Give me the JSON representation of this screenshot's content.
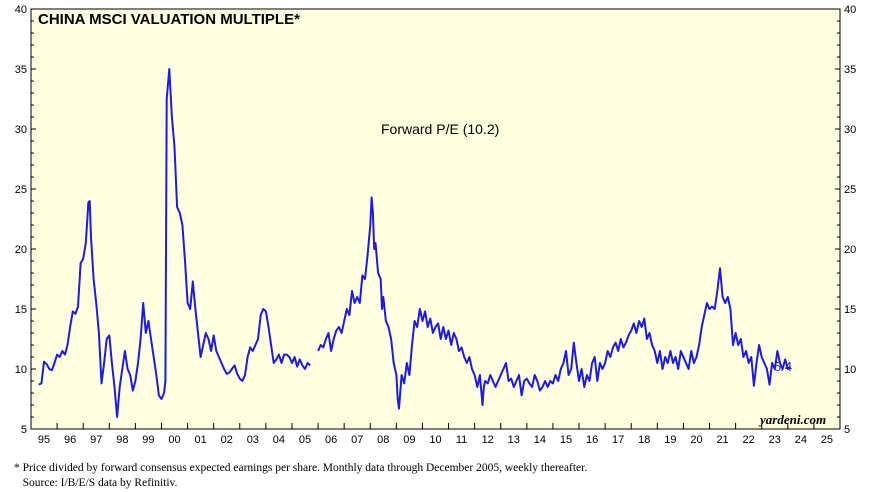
{
  "chart_data": {
    "type": "line",
    "title": "CHINA MSCI VALUATION MULTIPLE*",
    "series": [
      {
        "name": "Forward P/E (10.2)",
        "color": "#1a1aee",
        "points": [
          [
            1995.3,
            8.7
          ],
          [
            1995.4,
            8.8
          ],
          [
            1995.5,
            10.6
          ],
          [
            1995.6,
            10.4
          ],
          [
            1995.7,
            10.0
          ],
          [
            1995.8,
            9.9
          ],
          [
            1995.9,
            10.5
          ],
          [
            1996.0,
            11.2
          ],
          [
            1996.1,
            11.0
          ],
          [
            1996.2,
            11.5
          ],
          [
            1996.3,
            11.2
          ],
          [
            1996.4,
            12.0
          ],
          [
            1996.5,
            13.5
          ],
          [
            1996.6,
            14.8
          ],
          [
            1996.7,
            14.6
          ],
          [
            1996.8,
            15.2
          ],
          [
            1996.9,
            18.8
          ],
          [
            1997.0,
            19.2
          ],
          [
            1997.1,
            20.5
          ],
          [
            1997.2,
            23.9
          ],
          [
            1997.25,
            24.0
          ],
          [
            1997.3,
            21.0
          ],
          [
            1997.4,
            17.5
          ],
          [
            1997.5,
            15.5
          ],
          [
            1997.6,
            13.0
          ],
          [
            1997.7,
            8.8
          ],
          [
            1997.8,
            10.5
          ],
          [
            1997.9,
            12.5
          ],
          [
            1998.0,
            12.8
          ],
          [
            1998.1,
            10.5
          ],
          [
            1998.2,
            8.5
          ],
          [
            1998.3,
            6.0
          ],
          [
            1998.4,
            8.5
          ],
          [
            1998.5,
            10.0
          ],
          [
            1998.6,
            11.5
          ],
          [
            1998.7,
            10.0
          ],
          [
            1998.8,
            9.5
          ],
          [
            1998.9,
            8.2
          ],
          [
            1999.0,
            9.0
          ],
          [
            1999.1,
            10.5
          ],
          [
            1999.2,
            12.5
          ],
          [
            1999.3,
            15.5
          ],
          [
            1999.4,
            13.0
          ],
          [
            1999.5,
            14.0
          ],
          [
            1999.6,
            12.5
          ],
          [
            1999.7,
            11.0
          ],
          [
            1999.8,
            9.5
          ],
          [
            1999.9,
            7.8
          ],
          [
            2000.0,
            7.5
          ],
          [
            2000.1,
            8.0
          ],
          [
            2000.15,
            9.0
          ],
          [
            2000.2,
            32.5
          ],
          [
            2000.3,
            35.0
          ],
          [
            2000.4,
            31.0
          ],
          [
            2000.5,
            28.5
          ],
          [
            2000.6,
            23.5
          ],
          [
            2000.7,
            23.0
          ],
          [
            2000.8,
            22.0
          ],
          [
            2000.9,
            19.0
          ],
          [
            2001.0,
            15.5
          ],
          [
            2001.1,
            15.0
          ],
          [
            2001.2,
            17.3
          ],
          [
            2001.3,
            15.0
          ],
          [
            2001.4,
            13.0
          ],
          [
            2001.5,
            11.0
          ],
          [
            2001.6,
            12.0
          ],
          [
            2001.7,
            13.0
          ],
          [
            2001.8,
            12.5
          ],
          [
            2001.9,
            11.5
          ],
          [
            2002.0,
            12.8
          ],
          [
            2002.1,
            11.5
          ],
          [
            2002.2,
            11.0
          ],
          [
            2002.3,
            10.5
          ],
          [
            2002.4,
            10.0
          ],
          [
            2002.5,
            9.6
          ],
          [
            2002.6,
            9.7
          ],
          [
            2002.7,
            10.0
          ],
          [
            2002.8,
            10.3
          ],
          [
            2002.9,
            9.6
          ],
          [
            2003.0,
            9.2
          ],
          [
            2003.1,
            9.0
          ],
          [
            2003.2,
            9.5
          ],
          [
            2003.3,
            11.0
          ],
          [
            2003.4,
            11.8
          ],
          [
            2003.5,
            11.5
          ],
          [
            2003.6,
            12.0
          ],
          [
            2003.7,
            12.5
          ],
          [
            2003.8,
            14.5
          ],
          [
            2003.9,
            15.0
          ],
          [
            2004.0,
            14.8
          ],
          [
            2004.1,
            13.5
          ],
          [
            2004.2,
            12.0
          ],
          [
            2004.3,
            10.5
          ],
          [
            2004.4,
            10.8
          ],
          [
            2004.5,
            11.2
          ],
          [
            2004.6,
            10.5
          ],
          [
            2004.7,
            11.2
          ],
          [
            2004.8,
            11.2
          ],
          [
            2004.9,
            11.0
          ],
          [
            2005.0,
            10.5
          ],
          [
            2005.1,
            11.0
          ],
          [
            2005.2,
            10.2
          ],
          [
            2005.3,
            10.8
          ],
          [
            2005.4,
            10.3
          ],
          [
            2005.5,
            10.0
          ],
          [
            2005.6,
            10.5
          ],
          [
            2005.7,
            10.3
          ],
          [
            2006.0,
            11.5
          ],
          [
            2006.1,
            12.0
          ],
          [
            2006.2,
            11.8
          ],
          [
            2006.3,
            12.5
          ],
          [
            2006.4,
            13.0
          ],
          [
            2006.5,
            11.5
          ],
          [
            2006.6,
            12.5
          ],
          [
            2006.7,
            13.2
          ],
          [
            2006.8,
            13.5
          ],
          [
            2006.9,
            13.0
          ],
          [
            2007.0,
            14.0
          ],
          [
            2007.1,
            15.0
          ],
          [
            2007.2,
            14.5
          ],
          [
            2007.3,
            16.5
          ],
          [
            2007.4,
            15.5
          ],
          [
            2007.5,
            16.0
          ],
          [
            2007.6,
            15.5
          ],
          [
            2007.7,
            17.8
          ],
          [
            2007.8,
            17.5
          ],
          [
            2007.9,
            19.5
          ],
          [
            2008.0,
            22.0
          ],
          [
            2008.05,
            24.3
          ],
          [
            2008.1,
            23.0
          ],
          [
            2008.15,
            20.0
          ],
          [
            2008.2,
            20.5
          ],
          [
            2008.3,
            18.0
          ],
          [
            2008.4,
            17.5
          ],
          [
            2008.45,
            15.0
          ],
          [
            2008.5,
            16.0
          ],
          [
            2008.6,
            14.0
          ],
          [
            2008.7,
            13.5
          ],
          [
            2008.8,
            12.5
          ],
          [
            2008.9,
            10.5
          ],
          [
            2009.0,
            9.5
          ],
          [
            2009.05,
            7.5
          ],
          [
            2009.1,
            6.7
          ],
          [
            2009.2,
            9.5
          ],
          [
            2009.3,
            8.8
          ],
          [
            2009.4,
            10.5
          ],
          [
            2009.5,
            9.5
          ],
          [
            2009.6,
            12.0
          ],
          [
            2009.7,
            14.0
          ],
          [
            2009.8,
            13.5
          ],
          [
            2009.9,
            15.0
          ],
          [
            2010.0,
            14.0
          ],
          [
            2010.1,
            14.8
          ],
          [
            2010.2,
            13.5
          ],
          [
            2010.3,
            14.2
          ],
          [
            2010.4,
            13.0
          ],
          [
            2010.5,
            13.5
          ],
          [
            2010.6,
            13.8
          ],
          [
            2010.7,
            12.5
          ],
          [
            2010.8,
            13.5
          ],
          [
            2010.9,
            12.5
          ],
          [
            2011.0,
            13.2
          ],
          [
            2011.1,
            12.0
          ],
          [
            2011.2,
            13.0
          ],
          [
            2011.3,
            12.5
          ],
          [
            2011.4,
            11.5
          ],
          [
            2011.5,
            11.8
          ],
          [
            2011.6,
            11.0
          ],
          [
            2011.7,
            10.5
          ],
          [
            2011.8,
            11.0
          ],
          [
            2011.9,
            10.0
          ],
          [
            2012.0,
            9.5
          ],
          [
            2012.1,
            8.5
          ],
          [
            2012.2,
            9.5
          ],
          [
            2012.3,
            7.0
          ],
          [
            2012.35,
            8.5
          ],
          [
            2012.4,
            9.0
          ],
          [
            2012.5,
            8.8
          ],
          [
            2012.6,
            9.5
          ],
          [
            2012.7,
            9.0
          ],
          [
            2012.8,
            8.5
          ],
          [
            2012.9,
            9.0
          ],
          [
            2013.0,
            9.5
          ],
          [
            2013.1,
            10.0
          ],
          [
            2013.2,
            10.5
          ],
          [
            2013.3,
            9.0
          ],
          [
            2013.4,
            9.2
          ],
          [
            2013.5,
            8.5
          ],
          [
            2013.6,
            9.0
          ],
          [
            2013.7,
            9.5
          ],
          [
            2013.8,
            7.8
          ],
          [
            2013.9,
            9.0
          ],
          [
            2014.0,
            9.2
          ],
          [
            2014.1,
            8.8
          ],
          [
            2014.2,
            8.5
          ],
          [
            2014.3,
            9.5
          ],
          [
            2014.4,
            9.0
          ],
          [
            2014.5,
            8.2
          ],
          [
            2014.6,
            8.5
          ],
          [
            2014.7,
            9.0
          ],
          [
            2014.8,
            8.5
          ],
          [
            2014.9,
            9.0
          ],
          [
            2015.0,
            8.8
          ],
          [
            2015.1,
            9.5
          ],
          [
            2015.2,
            9.0
          ],
          [
            2015.3,
            10.0
          ],
          [
            2015.4,
            10.5
          ],
          [
            2015.5,
            11.5
          ],
          [
            2015.6,
            9.5
          ],
          [
            2015.7,
            10.0
          ],
          [
            2015.8,
            12.2
          ],
          [
            2015.9,
            10.5
          ],
          [
            2016.0,
            9.0
          ],
          [
            2016.1,
            10.0
          ],
          [
            2016.2,
            8.5
          ],
          [
            2016.3,
            9.5
          ],
          [
            2016.4,
            9.0
          ],
          [
            2016.5,
            10.5
          ],
          [
            2016.6,
            11.0
          ],
          [
            2016.7,
            9.0
          ],
          [
            2016.8,
            10.5
          ],
          [
            2016.9,
            10.0
          ],
          [
            2017.0,
            10.5
          ],
          [
            2017.1,
            11.5
          ],
          [
            2017.2,
            11.0
          ],
          [
            2017.3,
            11.8
          ],
          [
            2017.4,
            12.2
          ],
          [
            2017.5,
            11.5
          ],
          [
            2017.6,
            12.5
          ],
          [
            2017.7,
            11.8
          ],
          [
            2017.8,
            12.2
          ],
          [
            2017.9,
            12.8
          ],
          [
            2018.0,
            13.2
          ],
          [
            2018.1,
            13.8
          ],
          [
            2018.2,
            13.0
          ],
          [
            2018.3,
            14.0
          ],
          [
            2018.4,
            13.5
          ],
          [
            2018.5,
            14.2
          ],
          [
            2018.6,
            12.5
          ],
          [
            2018.7,
            13.0
          ],
          [
            2018.8,
            12.0
          ],
          [
            2018.9,
            11.5
          ],
          [
            2019.0,
            10.5
          ],
          [
            2019.1,
            11.5
          ],
          [
            2019.2,
            10.0
          ],
          [
            2019.3,
            11.0
          ],
          [
            2019.4,
            10.5
          ],
          [
            2019.5,
            11.5
          ],
          [
            2019.6,
            10.5
          ],
          [
            2019.7,
            11.0
          ],
          [
            2019.8,
            10.0
          ],
          [
            2019.9,
            11.5
          ],
          [
            2020.0,
            11.0
          ],
          [
            2020.1,
            10.5
          ],
          [
            2020.2,
            10.0
          ],
          [
            2020.3,
            11.5
          ],
          [
            2020.4,
            10.5
          ],
          [
            2020.5,
            11.0
          ],
          [
            2020.6,
            12.0
          ],
          [
            2020.7,
            13.5
          ],
          [
            2020.8,
            14.5
          ],
          [
            2020.9,
            15.5
          ],
          [
            2021.0,
            15.0
          ],
          [
            2021.1,
            15.2
          ],
          [
            2021.2,
            15.0
          ],
          [
            2021.3,
            16.5
          ],
          [
            2021.4,
            18.4
          ],
          [
            2021.5,
            16.0
          ],
          [
            2021.6,
            15.5
          ],
          [
            2021.7,
            16.0
          ],
          [
            2021.8,
            15.0
          ],
          [
            2021.9,
            12.0
          ],
          [
            2022.0,
            13.0
          ],
          [
            2022.1,
            12.0
          ],
          [
            2022.2,
            12.5
          ],
          [
            2022.3,
            11.0
          ],
          [
            2022.4,
            11.5
          ],
          [
            2022.5,
            10.5
          ],
          [
            2022.6,
            11.0
          ],
          [
            2022.7,
            8.6
          ],
          [
            2022.8,
            10.5
          ],
          [
            2022.9,
            12.0
          ],
          [
            2023.0,
            11.0
          ],
          [
            2023.1,
            10.5
          ],
          [
            2023.2,
            10.0
          ],
          [
            2023.3,
            8.7
          ],
          [
            2023.4,
            10.5
          ],
          [
            2023.5,
            10.0
          ],
          [
            2023.6,
            11.5
          ],
          [
            2023.7,
            10.5
          ],
          [
            2023.8,
            10.0
          ],
          [
            2023.9,
            10.8
          ],
          [
            2024.0,
            10.0
          ],
          [
            2024.1,
            10.2
          ]
        ]
      }
    ],
    "x_tick_labels": [
      "95",
      "96",
      "97",
      "98",
      "99",
      "00",
      "01",
      "02",
      "03",
      "04",
      "05",
      "06",
      "07",
      "08",
      "09",
      "10",
      "11",
      "12",
      "13",
      "14",
      "15",
      "16",
      "17",
      "18",
      "19",
      "20",
      "21",
      "22",
      "23",
      "24",
      "25"
    ],
    "xlim": [
      1995,
      2026
    ],
    "ylim": [
      5,
      40
    ],
    "y_ticks": [
      5,
      10,
      15,
      20,
      25,
      30,
      35,
      40
    ],
    "y_tick_labels": [
      "5",
      "10",
      "15",
      "20",
      "25",
      "30",
      "35",
      "40"
    ],
    "series_label": "Forward P/E (10.2)",
    "end_label": "5/4",
    "watermark": "yardeni.com",
    "plot_background": "#ffffe0",
    "line_color": "#1a1aee",
    "grid": false
  },
  "footnote": {
    "line1": "*  Price divided by forward consensus expected earnings per share. Monthly data through December 2005, weekly thereafter.",
    "line2": "   Source: I/B/E/S data by Refinitiv."
  }
}
